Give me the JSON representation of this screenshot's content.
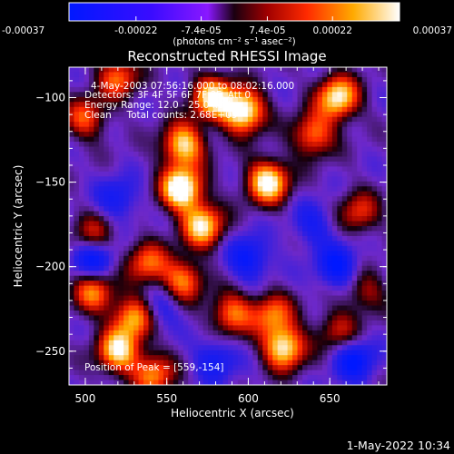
{
  "colorbar": {
    "tick_labels": [
      "-0.00037",
      "-0.00022",
      "-7.4e-05",
      "7.4e-05",
      "0.00022",
      "0.00037"
    ],
    "tick_values": [
      -0.00037,
      -0.00022,
      -7.4e-05,
      7.4e-05,
      0.00022,
      0.00037
    ],
    "range": [
      -0.00037,
      0.00037
    ],
    "unit_label": "(photons cm⁻² s⁻¹ asec⁻²)"
  },
  "chart_data": {
    "type": "heatmap",
    "title": "Reconstructed RHESSI Image",
    "xlabel": "Heliocentric X (arcsec)",
    "ylabel": "Heliocentric Y (arcsec)",
    "xlim": [
      490,
      685
    ],
    "ylim": [
      -270,
      -82
    ],
    "xticks": [
      500,
      550,
      600,
      650
    ],
    "yticks": [
      -100,
      -150,
      -200,
      -250
    ],
    "annotations": [
      "4-May-2003 07:56:16.000 to 08:02:16.000",
      "Detectors: 3F 4F 5F 6F 7F 8F, Att 0",
      "Energy Range: 12.0 - 25.0 keV",
      "Clean     Total counts: 2.68E+05"
    ],
    "peak_label": "Position of Peak = [559,-154]",
    "peak": {
      "x": 559,
      "y": -154
    },
    "bright_regions": [
      {
        "x": 559,
        "y": -154,
        "level": 1.0
      },
      {
        "x": 597,
        "y": -108,
        "level": 0.95
      },
      {
        "x": 578,
        "y": -100,
        "level": 0.8
      },
      {
        "x": 612,
        "y": -150,
        "level": 0.9
      },
      {
        "x": 560,
        "y": -128,
        "level": 0.8
      },
      {
        "x": 572,
        "y": -176,
        "level": 0.8
      },
      {
        "x": 655,
        "y": -100,
        "level": 0.85
      },
      {
        "x": 640,
        "y": -122,
        "level": 0.6
      },
      {
        "x": 538,
        "y": -198,
        "level": 0.55
      },
      {
        "x": 560,
        "y": -208,
        "level": 0.6
      },
      {
        "x": 505,
        "y": -215,
        "level": 0.6
      },
      {
        "x": 530,
        "y": -230,
        "level": 0.7
      },
      {
        "x": 520,
        "y": -250,
        "level": 0.8
      },
      {
        "x": 542,
        "y": -264,
        "level": 0.6
      },
      {
        "x": 590,
        "y": -228,
        "level": 0.6
      },
      {
        "x": 622,
        "y": -248,
        "level": 0.85
      },
      {
        "x": 615,
        "y": -228,
        "level": 0.55
      },
      {
        "x": 500,
        "y": -112,
        "level": 0.5
      },
      {
        "x": 505,
        "y": -182,
        "level": 0.45
      },
      {
        "x": 668,
        "y": -168,
        "level": 0.45
      },
      {
        "x": 672,
        "y": -215,
        "level": 0.35
      },
      {
        "x": 655,
        "y": -238,
        "level": 0.4
      },
      {
        "x": 520,
        "y": -88,
        "level": 0.55
      }
    ],
    "dark_regions": [
      {
        "x": 505,
        "y": -195,
        "level": 0.9
      },
      {
        "x": 600,
        "y": -195,
        "level": 0.75
      },
      {
        "x": 655,
        "y": -200,
        "level": 0.8
      },
      {
        "x": 665,
        "y": -255,
        "level": 0.8
      },
      {
        "x": 580,
        "y": -255,
        "level": 0.6
      },
      {
        "x": 520,
        "y": -160,
        "level": 0.55
      },
      {
        "x": 640,
        "y": -175,
        "level": 0.5
      },
      {
        "x": 545,
        "y": -225,
        "level": 0.5
      }
    ]
  },
  "footer": {
    "timestamp": "1-May-2022 10:34"
  }
}
